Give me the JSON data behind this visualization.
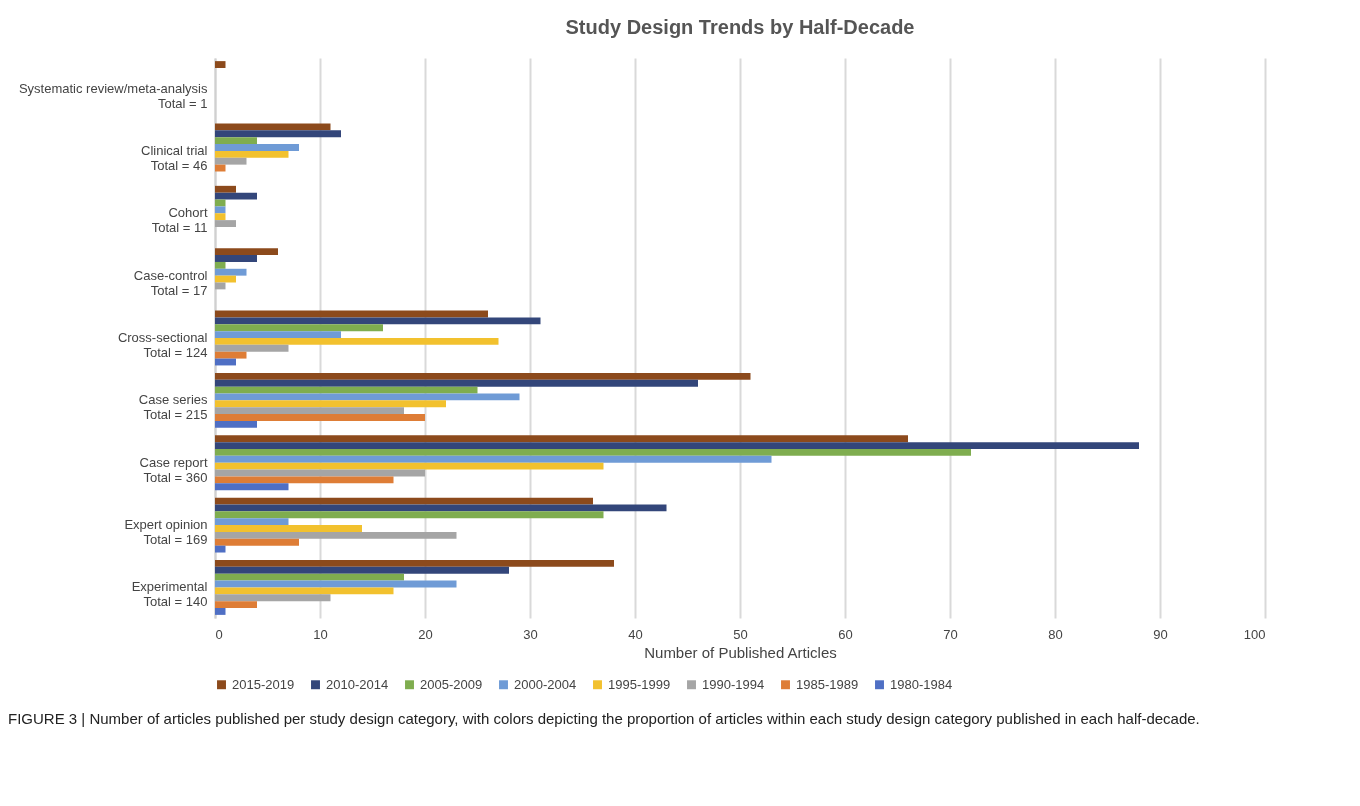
{
  "chart_data": {
    "type": "bar",
    "orientation": "horizontal",
    "title": "Study Design Trends by Half-Decade",
    "xlabel": "Number of Published Articles",
    "categories": [
      "Systematic review/meta-analysis\nTotal = 1",
      "Clinical trial\nTotal = 46",
      "Cohort\nTotal = 11",
      "Case-control\nTotal = 17",
      "Cross-sectional\nTotal = 124",
      "Case series\nTotal = 215",
      "Case report\nTotal = 360",
      "Expert opinion\nTotal = 169",
      "Experimental\nTotal = 140"
    ],
    "series": [
      {
        "name": "2015-2019",
        "color": "#8c4a1c",
        "values": [
          1,
          11,
          2,
          6,
          26,
          51,
          66,
          36,
          38
        ]
      },
      {
        "name": "2010-2014",
        "color": "#33467a",
        "values": [
          0,
          12,
          4,
          4,
          31,
          46,
          88,
          43,
          28
        ]
      },
      {
        "name": "2005-2009",
        "color": "#7fad4f",
        "values": [
          0,
          4,
          1,
          1,
          16,
          25,
          72,
          37,
          18
        ]
      },
      {
        "name": "2000-2004",
        "color": "#6f9bd6",
        "values": [
          0,
          8,
          1,
          3,
          12,
          29,
          53,
          7,
          23
        ]
      },
      {
        "name": "1995-1999",
        "color": "#f2c12e",
        "values": [
          0,
          7,
          1,
          2,
          27,
          22,
          37,
          14,
          17
        ]
      },
      {
        "name": "1990-1994",
        "color": "#a5a5a5",
        "values": [
          0,
          3,
          2,
          1,
          7,
          18,
          20,
          23,
          11
        ]
      },
      {
        "name": "1985-1989",
        "color": "#de7d36",
        "values": [
          0,
          1,
          0,
          0,
          3,
          20,
          17,
          8,
          4
        ]
      },
      {
        "name": "1980-1984",
        "color": "#4f6fc4",
        "values": [
          0,
          0,
          0,
          0,
          2,
          4,
          7,
          1,
          1
        ]
      }
    ],
    "xlim": [
      0,
      100
    ],
    "xticks": [
      0,
      10,
      20,
      30,
      40,
      50,
      60,
      70,
      80,
      90,
      100
    ],
    "grid": "x",
    "legend": "bottom",
    "annotations": [
      "FIGURE 3 | Number of articles published per study design category, with colors depicting the proportion of articles within each study design category published in each half-decade."
    ]
  }
}
